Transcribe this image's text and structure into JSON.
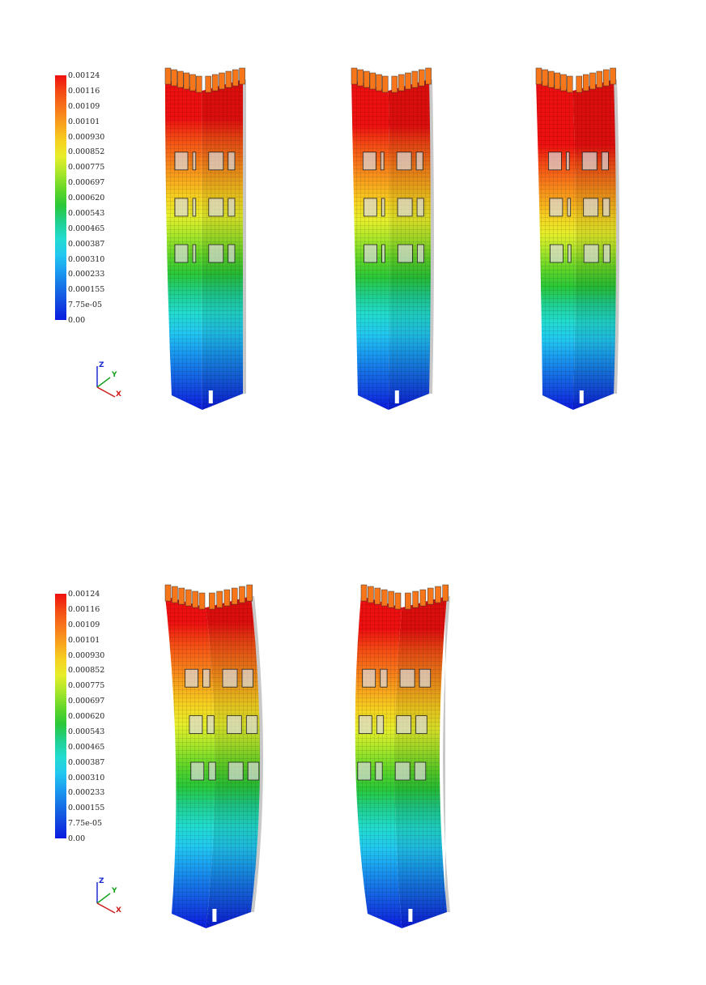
{
  "colorbar": {
    "labels": [
      "0.00124",
      "0.00116",
      "0.00109",
      "0.00101",
      "0.000930",
      "0.000852",
      "0.000775",
      "0.000697",
      "0.000620",
      "0.000543",
      "0.000465",
      "0.000387",
      "0.000310",
      "0.000233",
      "0.000155",
      "7.75e-05",
      "0.00"
    ],
    "colors": [
      "#ee1010",
      "#f44a14",
      "#f7761a",
      "#f8a21c",
      "#f6d020",
      "#e6ee2a",
      "#a8e62a",
      "#62d628",
      "#2ac838",
      "#20d090",
      "#22dcd0",
      "#22c8f0",
      "#1a9cf0",
      "#1670e6",
      "#1246e0",
      "#0a1ae0"
    ]
  },
  "axis_triad": {
    "z": "Z",
    "y": "Y",
    "x": "X"
  },
  "panels": [
    {
      "towers": [
        {
          "sway": 0,
          "top": 0.88
        },
        {
          "sway": 4,
          "top": 0.86
        },
        {
          "sway": 6,
          "top": 0.8
        }
      ]
    },
    {
      "towers": [
        {
          "sway": 22,
          "top": 0.92
        },
        {
          "sway": -18,
          "top": 0.9
        }
      ]
    }
  ]
}
